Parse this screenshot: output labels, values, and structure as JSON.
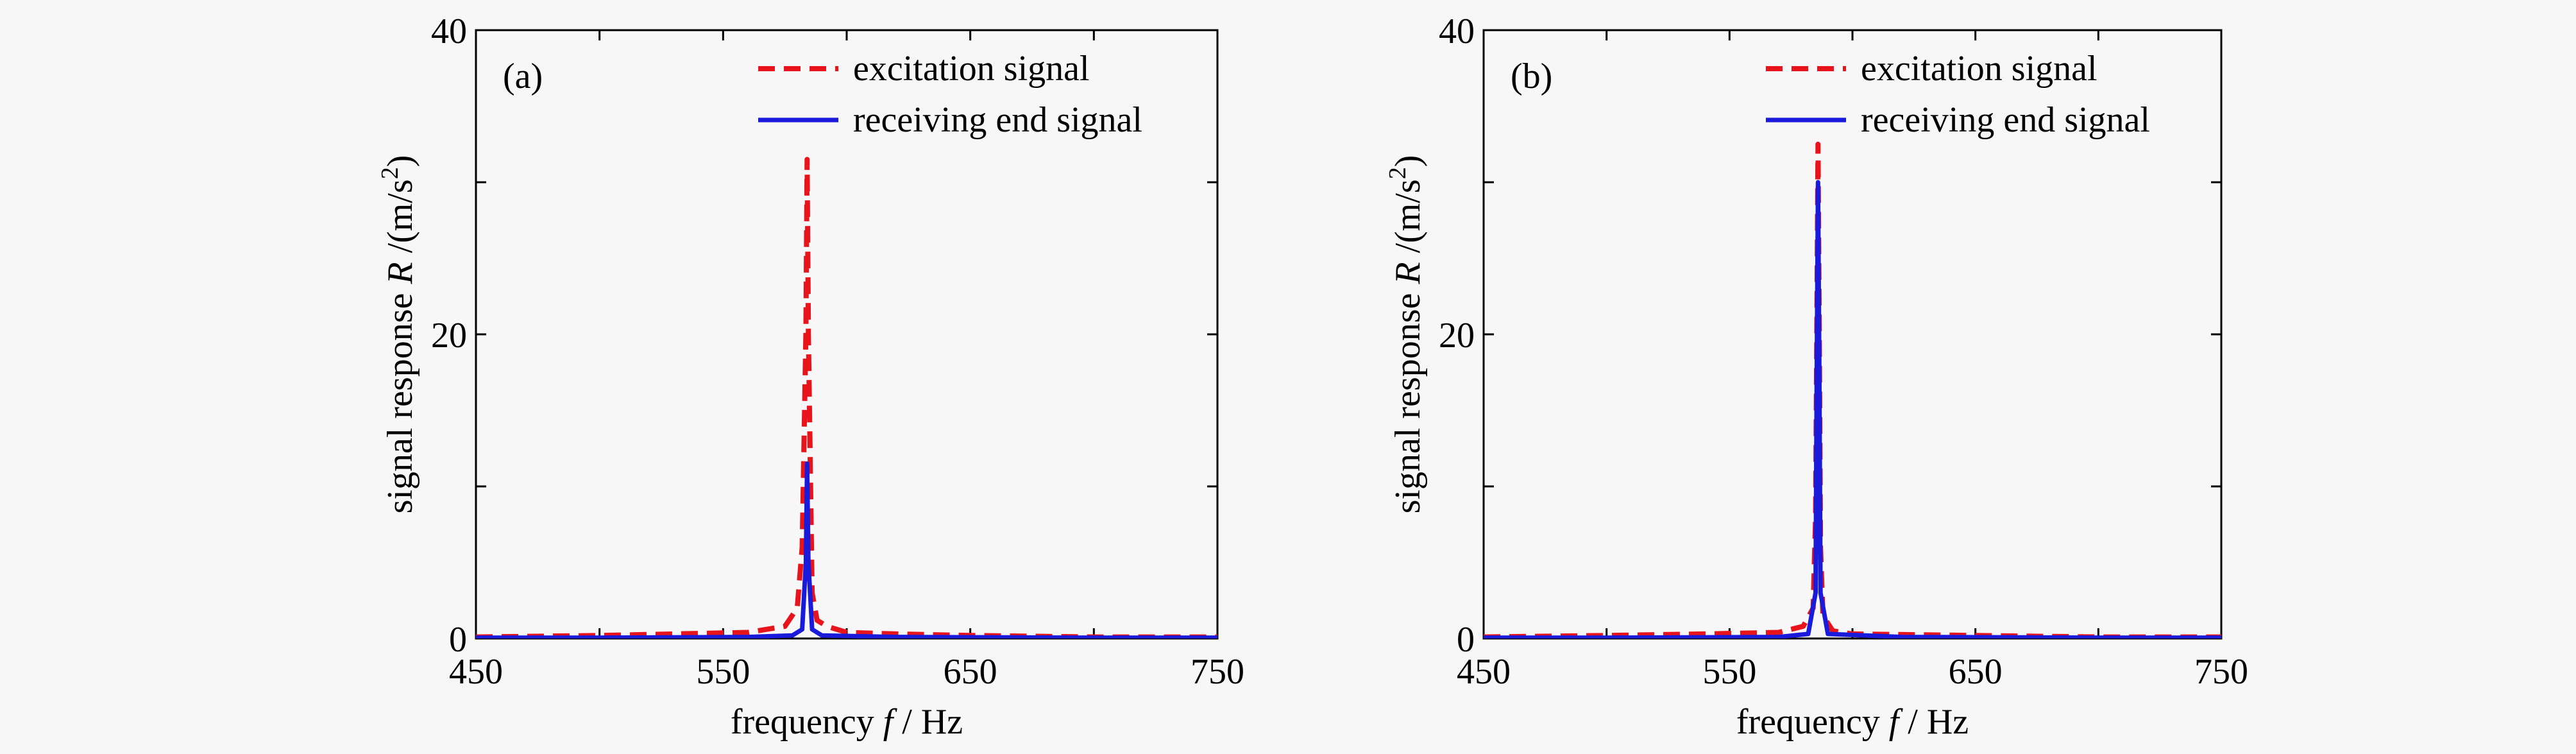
{
  "chart_data": [
    {
      "type": "line",
      "panel_label": "(a)",
      "xlabel_prefix": "frequency ",
      "xlabel_var": "f",
      "xlabel_unit": " / Hz",
      "ylabel_prefix": "signal response ",
      "ylabel_var": "R",
      "ylabel_unit": " /(m/s",
      "ylabel_exp": "2",
      "ylabel_close": ")",
      "xlim": [
        450,
        750
      ],
      "ylim": [
        0,
        40
      ],
      "xticks": [
        "450",
        "550",
        "650",
        "750"
      ],
      "yticks": [
        "0",
        "20",
        "40"
      ],
      "legend_position": "top-right",
      "grid": false,
      "series": [
        {
          "name": "excitation signal",
          "color": "#e8141c",
          "style": "dashed",
          "x": [
            450,
            500,
            530,
            560,
            575,
            580,
            582,
            583.5,
            584,
            584.5,
            586,
            588,
            592,
            600,
            620,
            650,
            700,
            750
          ],
          "y": [
            0.1,
            0.2,
            0.3,
            0.4,
            0.8,
            2.0,
            6.0,
            20,
            31.5,
            20,
            3.0,
            1.2,
            0.8,
            0.4,
            0.3,
            0.2,
            0.1,
            0.1
          ]
        },
        {
          "name": "receiving end signal",
          "color": "#1a1adb",
          "style": "solid",
          "x": [
            450,
            500,
            560,
            578,
            582,
            583.5,
            584,
            584.5,
            586,
            590,
            620,
            700,
            750
          ],
          "y": [
            0.05,
            0.05,
            0.1,
            0.2,
            0.6,
            5.0,
            11.5,
            5.0,
            0.6,
            0.2,
            0.1,
            0.05,
            0.05
          ]
        }
      ]
    },
    {
      "type": "line",
      "panel_label": "(b)",
      "xlabel_prefix": "frequency ",
      "xlabel_var": "f",
      "xlabel_unit": " / Hz",
      "ylabel_prefix": "signal response ",
      "ylabel_var": "R",
      "ylabel_unit": " /(m/s",
      "ylabel_exp": "2",
      "ylabel_close": ")",
      "xlim": [
        450,
        750
      ],
      "ylim": [
        0,
        40
      ],
      "xticks": [
        "450",
        "550",
        "650",
        "750"
      ],
      "yticks": [
        "0",
        "20",
        "40"
      ],
      "legend_position": "top-right",
      "grid": false,
      "series": [
        {
          "name": "excitation signal",
          "color": "#e8141c",
          "style": "dashed",
          "x": [
            450,
            500,
            540,
            570,
            580,
            584,
            585,
            585.5,
            586,
            586.5,
            587,
            588,
            592,
            600,
            650,
            700,
            750
          ],
          "y": [
            0.1,
            0.2,
            0.3,
            0.4,
            0.8,
            2.0,
            8.0,
            20,
            32.5,
            20,
            6.0,
            1.5,
            0.5,
            0.3,
            0.2,
            0.1,
            0.1
          ]
        },
        {
          "name": "receiving end signal",
          "color": "#1a1adb",
          "style": "solid",
          "x": [
            450,
            500,
            570,
            582,
            585,
            585.5,
            586,
            586.5,
            587,
            590,
            620,
            700,
            750
          ],
          "y": [
            0.05,
            0.05,
            0.1,
            0.3,
            3.0,
            18,
            30,
            18,
            3.0,
            0.3,
            0.1,
            0.05,
            0.05
          ]
        }
      ]
    }
  ]
}
